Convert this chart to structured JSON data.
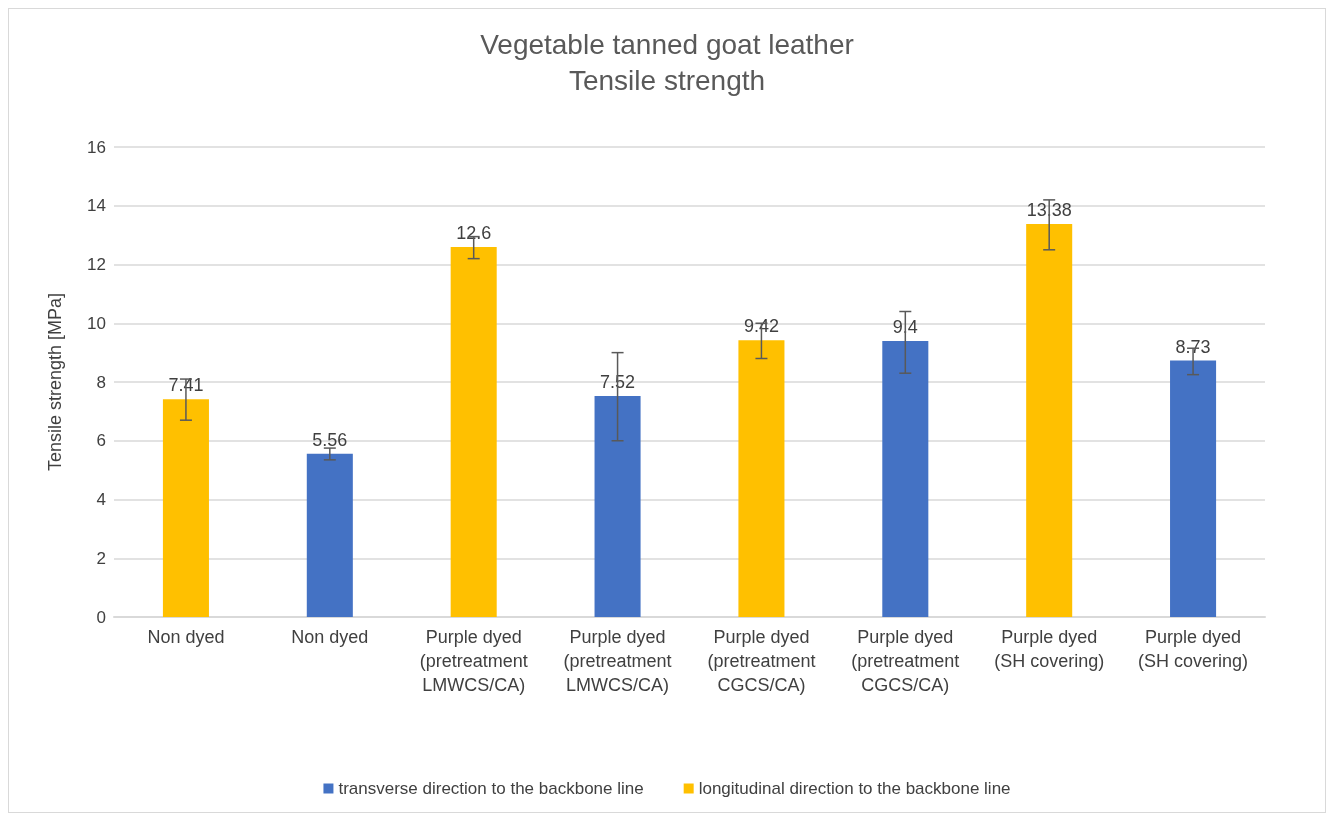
{
  "chart_data": {
    "type": "bar",
    "title": "Vegetable tanned goat leather\nTensile strength",
    "ylabel": "Tensile strength [MPa]",
    "categories": [
      "Non dyed",
      "Non dyed",
      "Purple dyed\n(pretreatment\nLMWCS/CA)",
      "Purple dyed\n(pretreatment\nLMWCS/CA)",
      "Purple dyed\n(pretreatment\nCGCS/CA)",
      "Purple dyed\n(pretreatment\nCGCS/CA)",
      "Purple dyed\n(SH covering)",
      "Purple dyed\n(SH covering)"
    ],
    "series": [
      {
        "name": "transverse direction to the backbone line",
        "color": "#4472c4",
        "values": [
          null,
          5.56,
          null,
          7.52,
          null,
          9.4,
          null,
          8.73
        ],
        "errors": [
          null,
          [
            5.35,
            5.75
          ],
          null,
          [
            6.0,
            9.0
          ],
          null,
          [
            8.3,
            10.4
          ],
          null,
          [
            8.25,
            9.15
          ]
        ]
      },
      {
        "name": "longitudinal direction to the backbone line",
        "color": "#ffc000",
        "values": [
          7.41,
          null,
          12.6,
          null,
          9.42,
          null,
          13.38,
          null
        ],
        "errors": [
          [
            6.7,
            8.1
          ],
          null,
          [
            12.2,
            12.95
          ],
          null,
          [
            8.8,
            10.0
          ],
          null,
          [
            12.5,
            14.2
          ],
          null
        ]
      }
    ],
    "ylim": [
      0,
      16
    ],
    "yticks": [
      0,
      2,
      4,
      6,
      8,
      10,
      12,
      14,
      16
    ],
    "grid": "y",
    "legend": "bottom",
    "data_labels": true
  }
}
